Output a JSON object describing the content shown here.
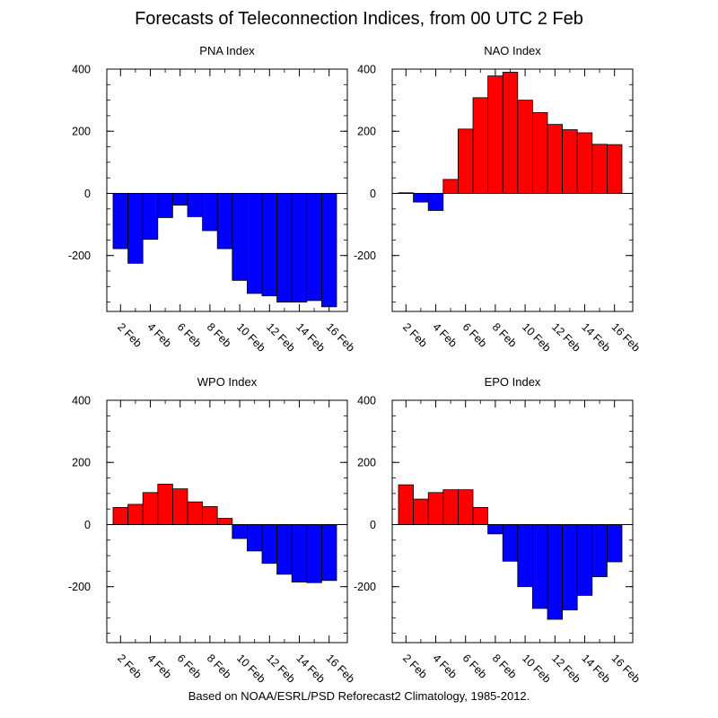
{
  "title": "Forecasts of Teleconnection Indices, from 00 UTC 2 Feb",
  "footer": "Based on NOAA/ESRL/PSD Reforecast2 Climatology, 1985-2012.",
  "colors": {
    "positive": "#ff0000",
    "negative": "#0000ff",
    "outline": "#000000"
  },
  "chart_data": [
    {
      "type": "bar",
      "title": "PNA Index",
      "categories": [
        "2 Feb",
        "3 Feb",
        "4 Feb",
        "5 Feb",
        "6 Feb",
        "7 Feb",
        "8 Feb",
        "9 Feb",
        "10 Feb",
        "11 Feb",
        "12 Feb",
        "13 Feb",
        "14 Feb",
        "15 Feb",
        "16 Feb"
      ],
      "tick_labels": [
        "2 Feb",
        "4 Feb",
        "6 Feb",
        "8 Feb",
        "10 Feb",
        "12 Feb",
        "14 Feb",
        "16 Feb"
      ],
      "values": [
        -178,
        -225,
        -148,
        -78,
        -38,
        -75,
        -120,
        -178,
        -280,
        -322,
        -330,
        -350,
        -350,
        -345,
        -365
      ],
      "ylim": [
        -380,
        400
      ],
      "yticks": [
        "400",
        "200",
        "0",
        "-200"
      ],
      "ytick_values": [
        400,
        200,
        0,
        -200
      ]
    },
    {
      "type": "bar",
      "title": "NAO Index",
      "categories": [
        "2 Feb",
        "3 Feb",
        "4 Feb",
        "5 Feb",
        "6 Feb",
        "7 Feb",
        "8 Feb",
        "9 Feb",
        "10 Feb",
        "11 Feb",
        "12 Feb",
        "13 Feb",
        "14 Feb",
        "15 Feb",
        "16 Feb"
      ],
      "tick_labels": [
        "2 Feb",
        "4 Feb",
        "6 Feb",
        "8 Feb",
        "10 Feb",
        "12 Feb",
        "14 Feb",
        "16 Feb"
      ],
      "values": [
        2,
        -28,
        -55,
        45,
        207,
        308,
        378,
        390,
        300,
        260,
        222,
        205,
        195,
        158,
        157
      ],
      "ylim": [
        -380,
        400
      ],
      "yticks": [
        "400",
        "200",
        "0",
        "-200"
      ],
      "ytick_values": [
        400,
        200,
        0,
        -200
      ]
    },
    {
      "type": "bar",
      "title": "WPO Index",
      "categories": [
        "2 Feb",
        "3 Feb",
        "4 Feb",
        "5 Feb",
        "6 Feb",
        "7 Feb",
        "8 Feb",
        "9 Feb",
        "10 Feb",
        "11 Feb",
        "12 Feb",
        "13 Feb",
        "14 Feb",
        "15 Feb",
        "16 Feb"
      ],
      "tick_labels": [
        "2 Feb",
        "4 Feb",
        "6 Feb",
        "8 Feb",
        "10 Feb",
        "12 Feb",
        "14 Feb",
        "16 Feb"
      ],
      "values": [
        55,
        65,
        103,
        130,
        115,
        73,
        58,
        20,
        -45,
        -85,
        -125,
        -160,
        -185,
        -187,
        -180
      ],
      "ylim": [
        -380,
        400
      ],
      "yticks": [
        "400",
        "200",
        "0",
        "-200"
      ],
      "ytick_values": [
        400,
        200,
        0,
        -200
      ]
    },
    {
      "type": "bar",
      "title": "EPO Index",
      "categories": [
        "2 Feb",
        "3 Feb",
        "4 Feb",
        "5 Feb",
        "6 Feb",
        "7 Feb",
        "8 Feb",
        "9 Feb",
        "10 Feb",
        "11 Feb",
        "12 Feb",
        "13 Feb",
        "14 Feb",
        "15 Feb",
        "16 Feb"
      ],
      "tick_labels": [
        "2 Feb",
        "4 Feb",
        "6 Feb",
        "8 Feb",
        "10 Feb",
        "12 Feb",
        "14 Feb",
        "16 Feb"
      ],
      "values": [
        128,
        82,
        103,
        112,
        112,
        55,
        -30,
        -118,
        -200,
        -270,
        -305,
        -275,
        -228,
        -168,
        -120
      ],
      "ylim": [
        -380,
        400
      ],
      "yticks": [
        "400",
        "200",
        "0",
        "-200"
      ],
      "ytick_values": [
        400,
        200,
        0,
        -200
      ]
    }
  ]
}
